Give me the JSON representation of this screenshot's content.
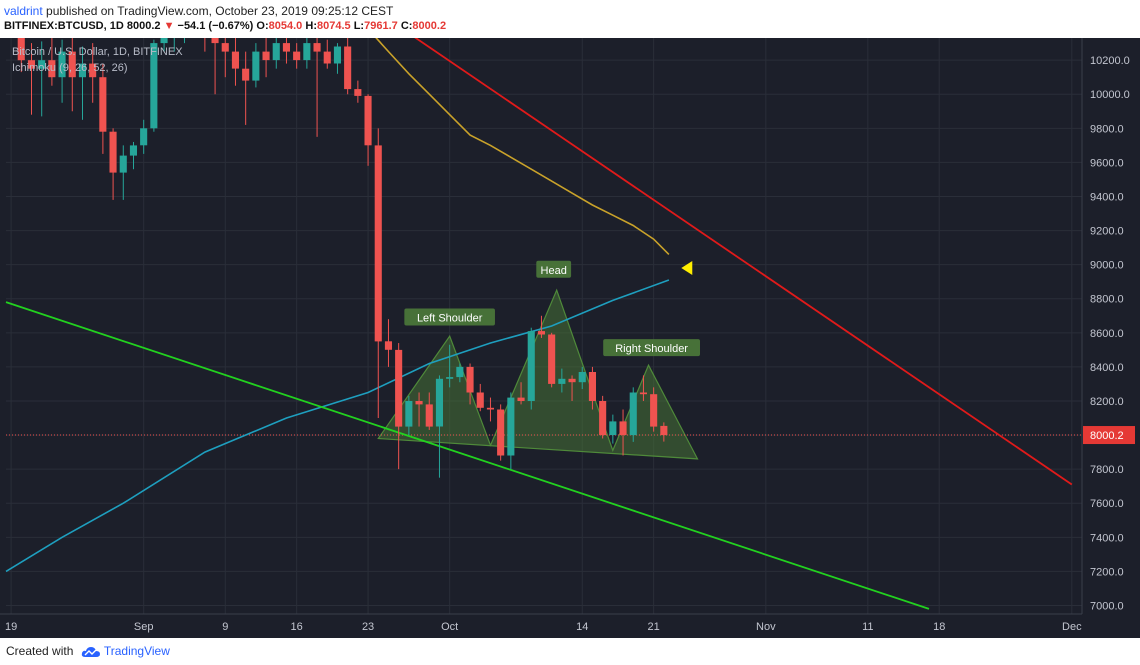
{
  "header": {
    "user": "valdrint",
    "published_text": "published on TradingView.com, October 23, 2019 09:25:12 CEST",
    "symbol": "BITFINEX:BTCUSD, 1D",
    "last": "8000.2",
    "change_arrow": "▼",
    "change": "−54.1 (−0.67%)",
    "o_label": "O:",
    "o": "8054.0",
    "h_label": "H:",
    "h": "8074.5",
    "l_label": "L:",
    "l": "7961.7",
    "c_label": "C:",
    "c": "8000.2"
  },
  "footer": {
    "created_with": "Created with",
    "brand": "TradingView",
    "logo_icon": "tradingview-cloud-icon"
  },
  "colors": {
    "background": "#1c1f2a",
    "grid": "#2a2e39",
    "up": "#26a69a",
    "down": "#ef5350",
    "cloud_line": "#1e9fbf",
    "ma_line": "#c9a22a",
    "resistance": "#e01a1a",
    "support": "#22d11f",
    "pattern_fill": "#4a7a35",
    "marker": "#ffee00"
  },
  "chart_data": {
    "type": "candlestick",
    "title": "Bitcoin / U.S. Dollar, 1D, BITFINEX",
    "indicator_label": "Ichimoku (9, 26, 52, 26)",
    "ylim": [
      6950,
      10330
    ],
    "y_ticks": [
      7000,
      7200,
      7400,
      7600,
      7800,
      8000,
      8200,
      8400,
      8600,
      8800,
      9000,
      9200,
      9400,
      9600,
      9800,
      10000,
      10200
    ],
    "y_tick_labels": [
      "7000.0",
      "7200.0",
      "7400.0",
      "7600.0",
      "7800.0",
      "8000.0",
      "8200.0",
      "8400.0",
      "8600.0",
      "8800.0",
      "9000.0",
      "9200.0",
      "9400.0",
      "9600.0",
      "9800.0",
      "10000.0",
      "10200.0"
    ],
    "x_ticks": [
      {
        "day": -1,
        "label": "19"
      },
      {
        "day": 12,
        "label": "Sep"
      },
      {
        "day": 20,
        "label": "9"
      },
      {
        "day": 27,
        "label": "16"
      },
      {
        "day": 34,
        "label": "23"
      },
      {
        "day": 42,
        "label": "Oct"
      },
      {
        "day": 55,
        "label": "14"
      },
      {
        "day": 62,
        "label": "21"
      },
      {
        "day": 73,
        "label": "Nov"
      },
      {
        "day": 83,
        "label": "11"
      },
      {
        "day": 90,
        "label": "18"
      },
      {
        "day": 103,
        "label": "Dec"
      }
    ],
    "xlim": [
      -1.5,
      104
    ],
    "last_price": 8000.2,
    "last_price_label": "8000.2",
    "candles": [
      {
        "d": 0,
        "o": 10350,
        "h": 10430,
        "l": 10130,
        "c": 10200
      },
      {
        "d": 1,
        "o": 10200,
        "h": 10300,
        "l": 9880,
        "c": 10150
      },
      {
        "d": 2,
        "o": 10150,
        "h": 10310,
        "l": 9870,
        "c": 10200
      },
      {
        "d": 3,
        "o": 10200,
        "h": 10350,
        "l": 10050,
        "c": 10100
      },
      {
        "d": 4,
        "o": 10100,
        "h": 10320,
        "l": 9950,
        "c": 10250
      },
      {
        "d": 5,
        "o": 10250,
        "h": 10380,
        "l": 9900,
        "c": 10100
      },
      {
        "d": 6,
        "o": 10100,
        "h": 10280,
        "l": 9850,
        "c": 10180
      },
      {
        "d": 7,
        "o": 10180,
        "h": 10300,
        "l": 9950,
        "c": 10100
      },
      {
        "d": 8,
        "o": 10100,
        "h": 10180,
        "l": 9650,
        "c": 9780
      },
      {
        "d": 9,
        "o": 9780,
        "h": 9800,
        "l": 9380,
        "c": 9540
      },
      {
        "d": 10,
        "o": 9540,
        "h": 9700,
        "l": 9380,
        "c": 9640
      },
      {
        "d": 11,
        "o": 9640,
        "h": 9720,
        "l": 9560,
        "c": 9700
      },
      {
        "d": 12,
        "o": 9700,
        "h": 9850,
        "l": 9650,
        "c": 9800
      },
      {
        "d": 13,
        "o": 9800,
        "h": 10320,
        "l": 9780,
        "c": 10300
      },
      {
        "d": 14,
        "o": 10300,
        "h": 10400,
        "l": 10250,
        "c": 10350
      },
      {
        "d": 15,
        "o": 10350,
        "h": 10450,
        "l": 10250,
        "c": 10400
      },
      {
        "d": 16,
        "o": 10400,
        "h": 10500,
        "l": 10300,
        "c": 10450
      },
      {
        "d": 17,
        "o": 10450,
        "h": 10550,
        "l": 10350,
        "c": 10400
      },
      {
        "d": 18,
        "o": 10400,
        "h": 10480,
        "l": 10250,
        "c": 10350
      },
      {
        "d": 19,
        "o": 10350,
        "h": 10420,
        "l": 10000,
        "c": 10300
      },
      {
        "d": 20,
        "o": 10300,
        "h": 10400,
        "l": 10100,
        "c": 10250
      },
      {
        "d": 21,
        "o": 10250,
        "h": 10340,
        "l": 10050,
        "c": 10150
      },
      {
        "d": 22,
        "o": 10150,
        "h": 10250,
        "l": 9820,
        "c": 10080
      },
      {
        "d": 23,
        "o": 10080,
        "h": 10300,
        "l": 10040,
        "c": 10250
      },
      {
        "d": 24,
        "o": 10250,
        "h": 10330,
        "l": 10100,
        "c": 10200
      },
      {
        "d": 25,
        "o": 10200,
        "h": 10350,
        "l": 10150,
        "c": 10300
      },
      {
        "d": 26,
        "o": 10300,
        "h": 10380,
        "l": 10180,
        "c": 10250
      },
      {
        "d": 27,
        "o": 10250,
        "h": 10300,
        "l": 10150,
        "c": 10200
      },
      {
        "d": 28,
        "o": 10200,
        "h": 10350,
        "l": 10150,
        "c": 10300
      },
      {
        "d": 29,
        "o": 10300,
        "h": 10380,
        "l": 9750,
        "c": 10250
      },
      {
        "d": 30,
        "o": 10250,
        "h": 10320,
        "l": 10150,
        "c": 10180
      },
      {
        "d": 31,
        "o": 10180,
        "h": 10300,
        "l": 10120,
        "c": 10280
      },
      {
        "d": 32,
        "o": 10280,
        "h": 10340,
        "l": 10000,
        "c": 10030
      },
      {
        "d": 33,
        "o": 10030,
        "h": 10080,
        "l": 9950,
        "c": 9990
      },
      {
        "d": 34,
        "o": 9990,
        "h": 10000,
        "l": 9580,
        "c": 9700
      },
      {
        "d": 35,
        "o": 9700,
        "h": 9800,
        "l": 8100,
        "c": 8550
      },
      {
        "d": 36,
        "o": 8550,
        "h": 8680,
        "l": 8400,
        "c": 8500
      },
      {
        "d": 37,
        "o": 8500,
        "h": 8540,
        "l": 7800,
        "c": 8050
      },
      {
        "d": 38,
        "o": 8050,
        "h": 8230,
        "l": 8000,
        "c": 8200
      },
      {
        "d": 39,
        "o": 8200,
        "h": 8250,
        "l": 8050,
        "c": 8180
      },
      {
        "d": 40,
        "o": 8180,
        "h": 8250,
        "l": 8030,
        "c": 8050
      },
      {
        "d": 41,
        "o": 8050,
        "h": 8350,
        "l": 7750,
        "c": 8330
      },
      {
        "d": 42,
        "o": 8330,
        "h": 8530,
        "l": 8280,
        "c": 8340
      },
      {
        "d": 43,
        "o": 8340,
        "h": 8420,
        "l": 8310,
        "c": 8400
      },
      {
        "d": 44,
        "o": 8400,
        "h": 8420,
        "l": 8180,
        "c": 8250
      },
      {
        "d": 45,
        "o": 8250,
        "h": 8300,
        "l": 8140,
        "c": 8160
      },
      {
        "d": 46,
        "o": 8160,
        "h": 8220,
        "l": 8080,
        "c": 8150
      },
      {
        "d": 47,
        "o": 8150,
        "h": 8180,
        "l": 7850,
        "c": 7880
      },
      {
        "d": 48,
        "o": 7880,
        "h": 8250,
        "l": 7800,
        "c": 8220
      },
      {
        "d": 49,
        "o": 8220,
        "h": 8310,
        "l": 8180,
        "c": 8200
      },
      {
        "d": 50,
        "o": 8200,
        "h": 8630,
        "l": 8150,
        "c": 8610
      },
      {
        "d": 51,
        "o": 8610,
        "h": 8700,
        "l": 8570,
        "c": 8590
      },
      {
        "d": 52,
        "o": 8590,
        "h": 8600,
        "l": 8280,
        "c": 8300
      },
      {
        "d": 53,
        "o": 8300,
        "h": 8390,
        "l": 8250,
        "c": 8330
      },
      {
        "d": 54,
        "o": 8330,
        "h": 8350,
        "l": 8200,
        "c": 8310
      },
      {
        "d": 55,
        "o": 8310,
        "h": 8400,
        "l": 8270,
        "c": 8370
      },
      {
        "d": 56,
        "o": 8370,
        "h": 8400,
        "l": 8150,
        "c": 8200
      },
      {
        "d": 57,
        "o": 8200,
        "h": 8230,
        "l": 7980,
        "c": 8000
      },
      {
        "d": 58,
        "o": 8000,
        "h": 8120,
        "l": 7950,
        "c": 8080
      },
      {
        "d": 59,
        "o": 8080,
        "h": 8150,
        "l": 7880,
        "c": 8000
      },
      {
        "d": 60,
        "o": 8000,
        "h": 8280,
        "l": 7960,
        "c": 8250
      },
      {
        "d": 61,
        "o": 8250,
        "h": 8350,
        "l": 8200,
        "c": 8240
      },
      {
        "d": 62,
        "o": 8240,
        "h": 8280,
        "l": 8020,
        "c": 8050
      },
      {
        "d": 63,
        "o": 8054.0,
        "h": 8074.5,
        "l": 7961.7,
        "c": 8000.2
      }
    ],
    "ma_line": {
      "points": [
        [
          33,
          10450
        ],
        [
          36,
          10250
        ],
        [
          38,
          10120
        ],
        [
          40,
          10000
        ],
        [
          42,
          9880
        ],
        [
          44,
          9760
        ],
        [
          46,
          9700
        ],
        [
          48,
          9630
        ],
        [
          50,
          9560
        ],
        [
          52,
          9490
        ],
        [
          54,
          9420
        ],
        [
          56,
          9350
        ],
        [
          58,
          9290
        ],
        [
          60,
          9230
        ],
        [
          62,
          9150
        ],
        [
          63.5,
          9060
        ]
      ]
    },
    "cloud_line": {
      "points": [
        [
          -1.5,
          7200
        ],
        [
          4,
          7400
        ],
        [
          10,
          7600
        ],
        [
          18,
          7900
        ],
        [
          26,
          8100
        ],
        [
          34,
          8250
        ],
        [
          40,
          8420
        ],
        [
          46,
          8540
        ],
        [
          52,
          8640
        ],
        [
          58,
          8790
        ],
        [
          63.5,
          8910
        ]
      ]
    },
    "resistance_line": {
      "points": [
        [
          34.5,
          10500
        ],
        [
          103,
          7710
        ]
      ]
    },
    "support_line": {
      "points": [
        [
          -1.5,
          8780
        ],
        [
          89,
          6980
        ]
      ]
    },
    "pattern": {
      "polygon": [
        [
          35,
          7980
        ],
        [
          42,
          8580
        ],
        [
          46,
          7940
        ],
        [
          52.5,
          8850
        ],
        [
          58,
          7910
        ],
        [
          61.5,
          8410
        ],
        [
          66.3,
          7860
        ],
        [
          35,
          7980
        ]
      ],
      "labels": [
        {
          "text": "Left Shoulder",
          "day": 42,
          "price": 8690
        },
        {
          "text": "Head",
          "day": 52.2,
          "price": 8970
        },
        {
          "text": "Right Shoulder",
          "day": 61.8,
          "price": 8510
        }
      ]
    },
    "marker": {
      "day": 65.3,
      "price": 8980,
      "shape": "triangle-left"
    }
  }
}
